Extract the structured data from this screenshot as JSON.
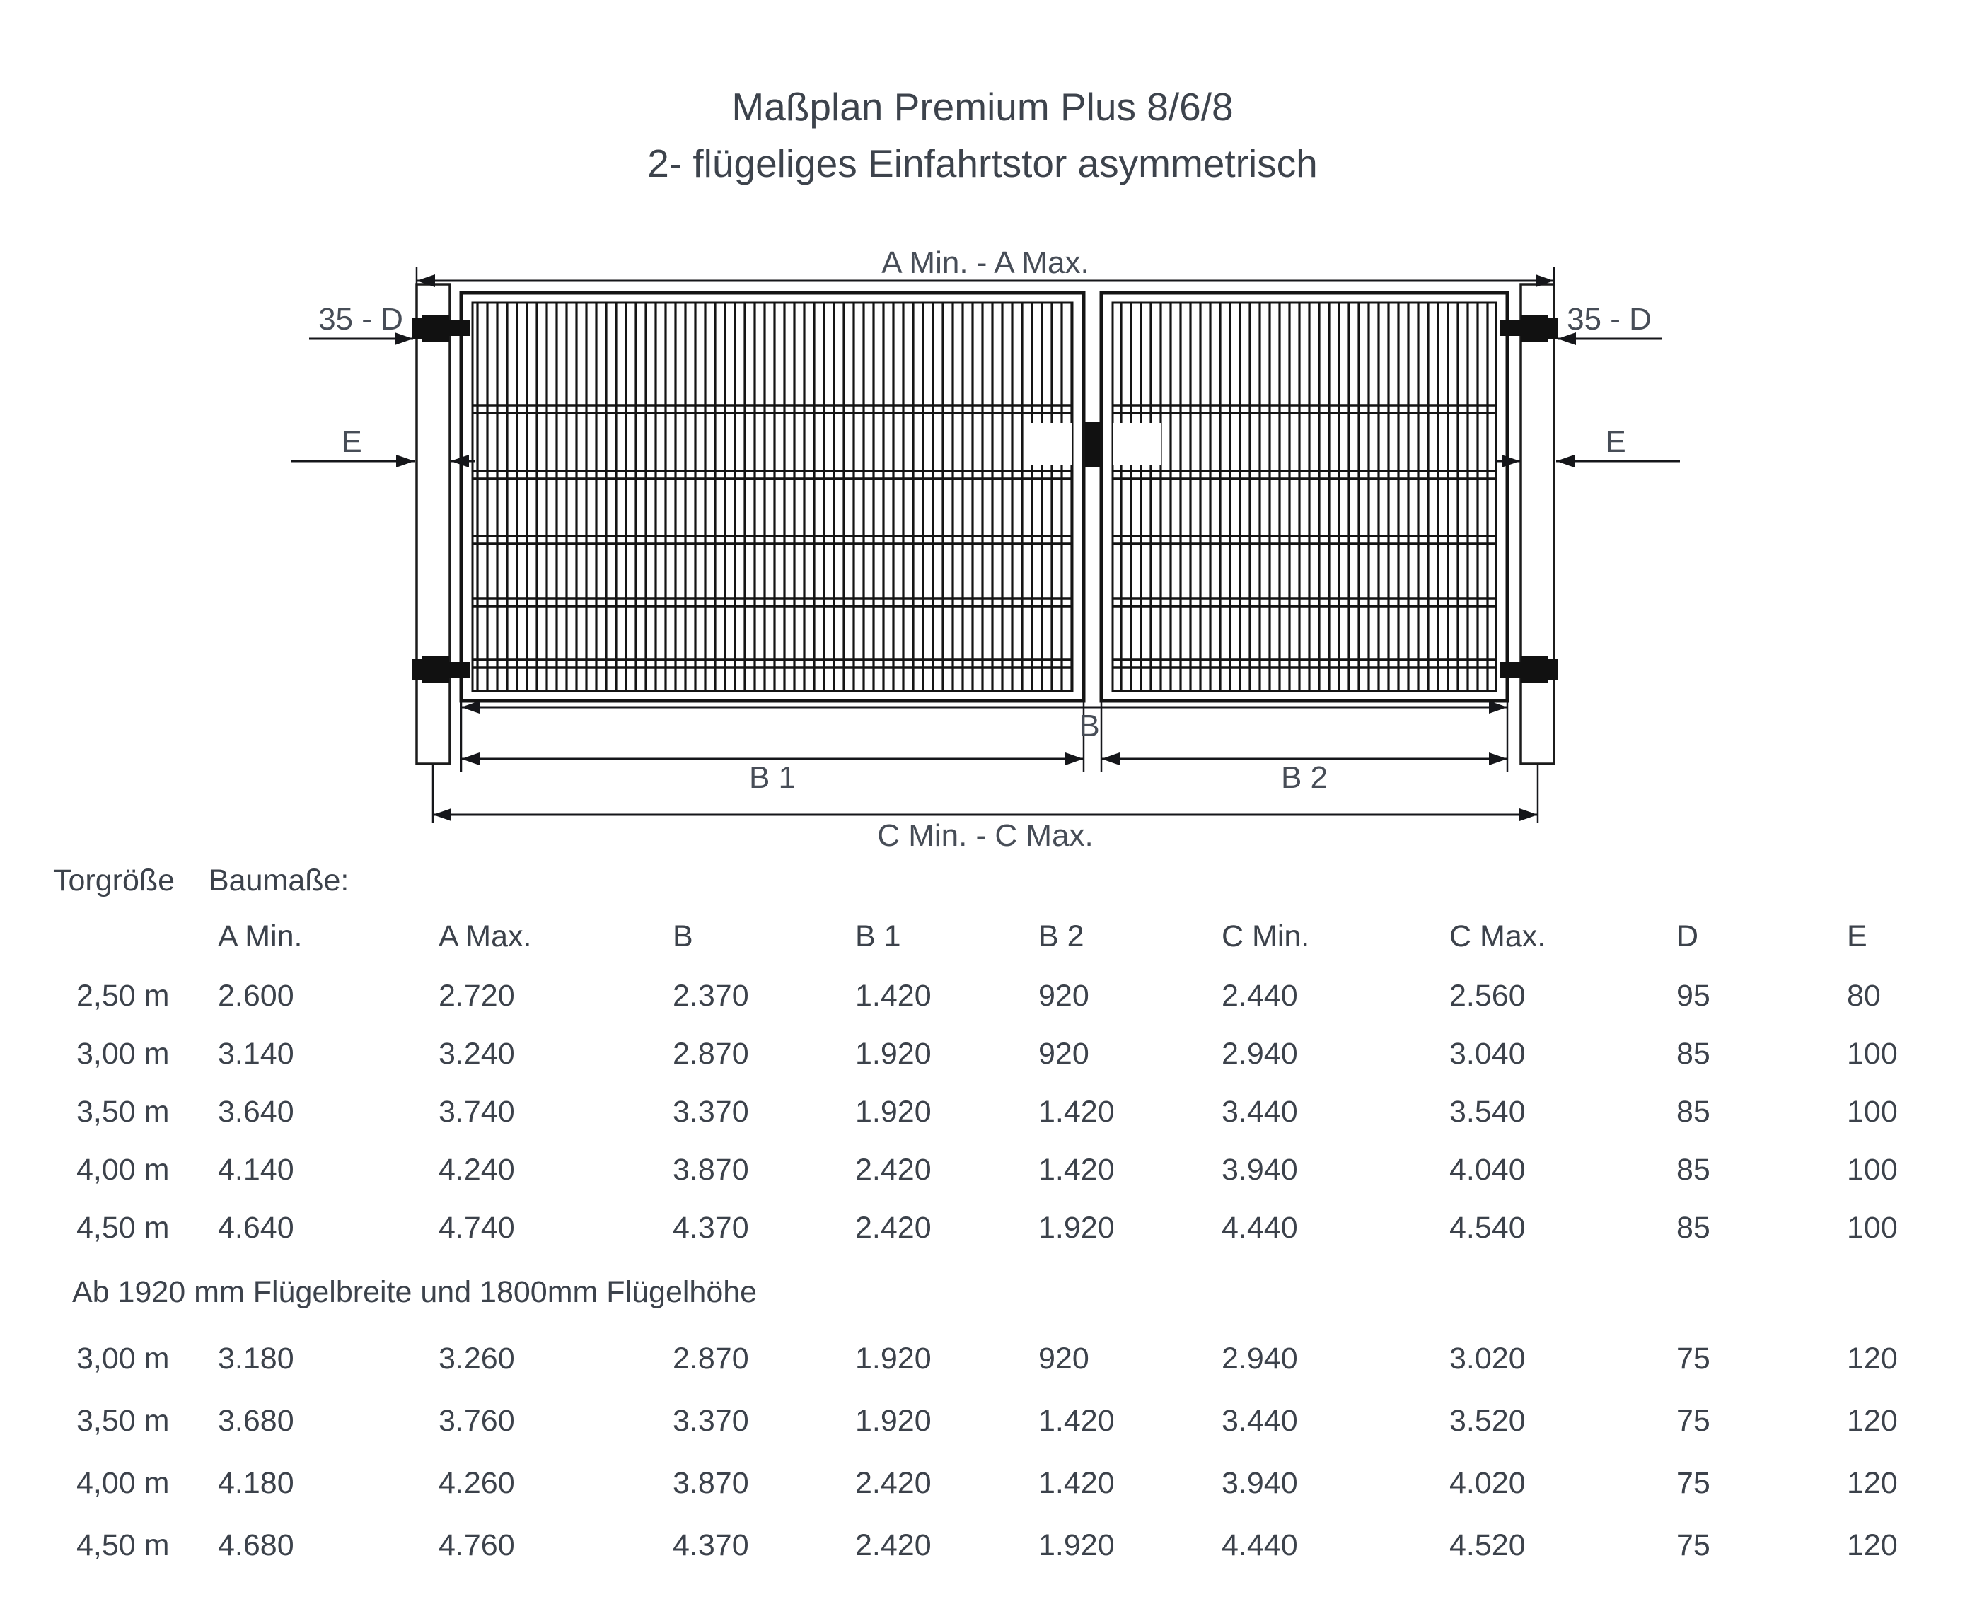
{
  "title": {
    "line1": "Maßplan Premium Plus 8/6/8",
    "line2": "2- flügeliges Einfahrtstor asymmetrisch"
  },
  "diagram": {
    "labels": {
      "a": "A Min. - A Max.",
      "d": "35 - D",
      "e": "E",
      "b": "B",
      "b1": "B 1",
      "b2": "B 2",
      "c": "C Min. - C Max."
    },
    "colors": {
      "line": "#15161a",
      "label": "#474d57"
    }
  },
  "table": {
    "group_label": "Torgröße",
    "section_label": "Baumaße:",
    "headers": [
      "A Min.",
      "A Max.",
      "B",
      "B 1",
      "B 2",
      "C Min.",
      "C Max.",
      "D",
      "E"
    ],
    "rows": [
      {
        "size": "2,50 m",
        "values": [
          "2.600",
          "2.720",
          "2.370",
          "1.420",
          "920",
          "2.440",
          "2.560",
          "95",
          "80"
        ]
      },
      {
        "size": "3,00 m",
        "values": [
          "3.140",
          "3.240",
          "2.870",
          "1.920",
          "920",
          "2.940",
          "3.040",
          "85",
          "100"
        ]
      },
      {
        "size": "3,50 m",
        "values": [
          "3.640",
          "3.740",
          "3.370",
          "1.920",
          "1.420",
          "3.440",
          "3.540",
          "85",
          "100"
        ]
      },
      {
        "size": "4,00 m",
        "values": [
          "4.140",
          "4.240",
          "3.870",
          "2.420",
          "1.420",
          "3.940",
          "4.040",
          "85",
          "100"
        ]
      },
      {
        "size": "4,50 m",
        "values": [
          "4.640",
          "4.740",
          "4.370",
          "2.420",
          "1.920",
          "4.440",
          "4.540",
          "85",
          "100"
        ]
      }
    ],
    "note": "Ab 1920 mm Flügelbreite und 1800mm Flügelhöhe",
    "rows2": [
      {
        "size": "3,00 m",
        "values": [
          "3.180",
          "3.260",
          "2.870",
          "1.920",
          "920",
          "2.940",
          "3.020",
          "75",
          "120"
        ]
      },
      {
        "size": "3,50 m",
        "values": [
          "3.680",
          "3.760",
          "3.370",
          "1.920",
          "1.420",
          "3.440",
          "3.520",
          "75",
          "120"
        ]
      },
      {
        "size": "4,00 m",
        "values": [
          "4.180",
          "4.260",
          "3.870",
          "2.420",
          "1.420",
          "3.940",
          "4.020",
          "75",
          "120"
        ]
      },
      {
        "size": "4,50 m",
        "values": [
          "4.680",
          "4.760",
          "4.370",
          "2.420",
          "1.920",
          "4.440",
          "4.520",
          "75",
          "120"
        ]
      }
    ]
  }
}
